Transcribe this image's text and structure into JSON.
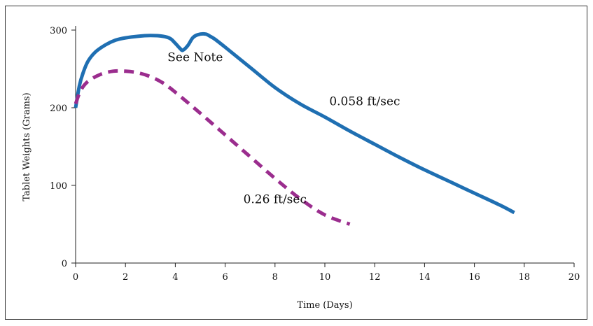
{
  "chart_data": {
    "type": "line",
    "xlabel": "Time (Days)",
    "ylabel": "Tablet Weights (Grams)",
    "xlim": [
      0,
      20
    ],
    "ylim": [
      0,
      300
    ],
    "x_ticks": [
      0,
      2,
      4,
      6,
      8,
      10,
      12,
      14,
      16,
      18,
      20
    ],
    "y_ticks": [
      0,
      100,
      200,
      300
    ],
    "grid": false,
    "series": [
      {
        "name": "0.058 ft/sec",
        "color": "#1f6fb2",
        "style": "solid",
        "x": [
          0,
          0.15,
          0.3,
          0.5,
          0.8,
          1.2,
          1.6,
          2.0,
          2.5,
          3.0,
          3.5,
          3.8,
          4.0,
          4.2,
          4.3,
          4.5,
          4.7,
          4.9,
          5.2,
          5.4,
          5.6,
          6.0,
          7.0,
          8.0,
          9.0,
          10.0,
          11.0,
          12.0,
          13.0,
          14.0,
          15.0,
          16.0,
          17.0,
          17.6
        ],
        "y": [
          200,
          228,
          245,
          260,
          272,
          281,
          287,
          290,
          292,
          293,
          292,
          289,
          283,
          276,
          274,
          280,
          290,
          294,
          295,
          292,
          288,
          278,
          252,
          226,
          205,
          188,
          170,
          153,
          136,
          120,
          105,
          90,
          75,
          65
        ]
      },
      {
        "name": "0.26 ft/sec",
        "color": "#9b2d8e",
        "style": "dashed",
        "x": [
          0,
          0.2,
          0.5,
          1.0,
          1.5,
          2.0,
          2.5,
          3.0,
          3.5,
          4.0,
          5.0,
          6.0,
          7.0,
          8.0,
          9.0,
          10.0,
          11.0
        ],
        "y": [
          205,
          222,
          234,
          243,
          247,
          247,
          245,
          240,
          232,
          220,
          193,
          165,
          137,
          109,
          83,
          62,
          50
        ]
      }
    ],
    "annotations": [
      {
        "text": "See Note",
        "x": 4.8,
        "y": 260
      },
      {
        "text": "0.058 ft/sec",
        "x": 11.6,
        "y": 203
      },
      {
        "text": "0.26 ft/sec",
        "x": 8.0,
        "y": 77
      }
    ]
  }
}
